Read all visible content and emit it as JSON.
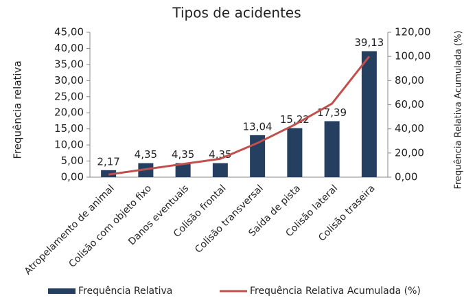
{
  "chart_data": {
    "type": "bar",
    "title": "Tipos de acidentes",
    "ylabel": "Frequência relativa",
    "y2label": "Frequência Relativa Acumulada (%)",
    "categories": [
      "Atropelamento de animal",
      "Colisão com objeto fixo",
      "Danos eventuais",
      "Colisão frontal",
      "Colisão transversal",
      "Saída de pista",
      "Colisão lateral",
      "Colisão traseira"
    ],
    "series": [
      {
        "name": "Frequência Relativa",
        "color": "#243f60",
        "values": [
          2.17,
          4.35,
          4.35,
          4.35,
          13.04,
          15.22,
          17.39,
          39.13
        ],
        "value_labels": [
          "2,17",
          "4,35",
          "4,35",
          "4,35",
          "13,04",
          "15,22",
          "17,39",
          "39,13"
        ]
      },
      {
        "name": "Frequência Relativa Acumulada (%)",
        "type": "line",
        "axis": "y2",
        "color": "#c0504d",
        "values": [
          2.17,
          6.52,
          10.87,
          15.22,
          28.26,
          43.48,
          60.87,
          100.0
        ]
      }
    ],
    "ylim": [
      0,
      45
    ],
    "yticks": [
      {
        "value": 0,
        "label": "0,00"
      },
      {
        "value": 5,
        "label": "5,00"
      },
      {
        "value": 10,
        "label": "10,00"
      },
      {
        "value": 15,
        "label": "15,00"
      },
      {
        "value": 20,
        "label": "20,00"
      },
      {
        "value": 25,
        "label": "25,00"
      },
      {
        "value": 30,
        "label": "30,00"
      },
      {
        "value": 35,
        "label": "35,00"
      },
      {
        "value": 40,
        "label": "40,00"
      },
      {
        "value": 45,
        "label": "45,00"
      }
    ],
    "y2lim": [
      0,
      120
    ],
    "y2ticks": [
      {
        "value": 0,
        "label": "0,00"
      },
      {
        "value": 20,
        "label": "20,00"
      },
      {
        "value": 40,
        "label": "40,00"
      },
      {
        "value": 60,
        "label": "60,00"
      },
      {
        "value": 80,
        "label": "80,00"
      },
      {
        "value": 100,
        "label": "100,00"
      },
      {
        "value": 120,
        "label": "120,00"
      }
    ],
    "grid": false,
    "legend": "bottom"
  }
}
